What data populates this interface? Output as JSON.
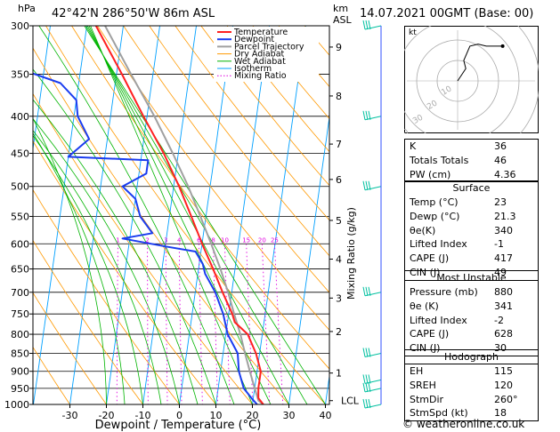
{
  "header": {
    "hpa_unit": "hPa",
    "location": "42°42'N  286°50'W  86m  ASL",
    "km_unit": "km",
    "asl_unit": "ASL",
    "datetime": "14.07.2021  00GMT  (Base: 00)"
  },
  "footer": {
    "copyright": "© weatheronline.co.uk"
  },
  "chart_data": {
    "type": "skew-t",
    "xlabel": "Dewpoint / Temperature (°C)",
    "ylabel_left": "hPa",
    "ylabel_right": "Mixing Ratio (g/kg)",
    "xlim": [
      -35,
      40
    ],
    "x_ticks": [
      -30,
      -20,
      -10,
      0,
      10,
      20,
      30,
      40
    ],
    "pressure_levels": [
      300,
      350,
      400,
      450,
      500,
      550,
      600,
      650,
      700,
      750,
      800,
      850,
      900,
      950,
      1000
    ],
    "altitude_km": [
      {
        "km": "9",
        "p": 321
      },
      {
        "km": "8",
        "p": 375
      },
      {
        "km": "7",
        "p": 437
      },
      {
        "km": "6",
        "p": 489
      },
      {
        "km": "5",
        "p": 557
      },
      {
        "km": "4",
        "p": 630
      },
      {
        "km": "3",
        "p": 713
      },
      {
        "km": "2",
        "p": 793
      },
      {
        "km": "1",
        "p": 905
      },
      {
        "km": "LCL",
        "p": 988
      }
    ],
    "mixing_ratio_labels": [
      "1",
      "2",
      "3",
      "4",
      "6",
      "8",
      "10",
      "15",
      "20",
      "25"
    ],
    "legend": [
      "Temperature",
      "Dewpoint",
      "Parcel Trajectory",
      "Dry Adiabat",
      "Wet Adiabat",
      "Isotherm",
      "Mixing Ratio"
    ],
    "colors": {
      "temperature": "#ff2020",
      "dewpoint": "#1a3cf0",
      "parcel": "#a0a0a0",
      "dry_adiabat": "#ff9900",
      "wet_adiabat": "#00b400",
      "isotherm": "#00a0ff",
      "mixing_ratio": "#e000e0",
      "wind": "#00c0a0"
    },
    "temperature": [
      {
        "p": 1000,
        "t": 23.0
      },
      {
        "p": 980,
        "t": 21.4
      },
      {
        "p": 950,
        "t": 21.0
      },
      {
        "p": 900,
        "t": 21.0
      },
      {
        "p": 850,
        "t": 19.0
      },
      {
        "p": 800,
        "t": 16.0
      },
      {
        "p": 770,
        "t": 12.0
      },
      {
        "p": 750,
        "t": 11.0
      },
      {
        "p": 700,
        "t": 7.5
      },
      {
        "p": 650,
        "t": 4.0
      },
      {
        "p": 600,
        "t": 0.0
      },
      {
        "p": 550,
        "t": -4.0
      },
      {
        "p": 500,
        "t": -8.5
      },
      {
        "p": 450,
        "t": -14.0
      },
      {
        "p": 400,
        "t": -21.0
      },
      {
        "p": 350,
        "t": -28.5
      },
      {
        "p": 300,
        "t": -37.5
      }
    ],
    "dewpoint": [
      {
        "p": 1000,
        "t": 21.3
      },
      {
        "p": 980,
        "t": 19.5
      },
      {
        "p": 950,
        "t": 17.0
      },
      {
        "p": 900,
        "t": 15.0
      },
      {
        "p": 850,
        "t": 14.0
      },
      {
        "p": 800,
        "t": 10.5
      },
      {
        "p": 750,
        "t": 8.5
      },
      {
        "p": 700,
        "t": 5.5
      },
      {
        "p": 660,
        "t": 2.0
      },
      {
        "p": 640,
        "t": 1.0
      },
      {
        "p": 615,
        "t": -1.5
      },
      {
        "p": 605,
        "t": -10.0
      },
      {
        "p": 590,
        "t": -22.0
      },
      {
        "p": 580,
        "t": -14.0
      },
      {
        "p": 550,
        "t": -18.0
      },
      {
        "p": 520,
        "t": -20.0
      },
      {
        "p": 500,
        "t": -24.0
      },
      {
        "p": 480,
        "t": -18.0
      },
      {
        "p": 460,
        "t": -18.0
      },
      {
        "p": 455,
        "t": -40.0
      },
      {
        "p": 430,
        "t": -35.0
      },
      {
        "p": 400,
        "t": -39.0
      },
      {
        "p": 380,
        "t": -40.0
      },
      {
        "p": 360,
        "t": -45.0
      },
      {
        "p": 345,
        "t": -56.0
      },
      {
        "p": 320,
        "t": -58.0
      },
      {
        "p": 310,
        "t": -60.0
      },
      {
        "p": 300,
        "t": -65.0
      }
    ],
    "parcel": [
      {
        "p": 1000,
        "t": 23.0
      },
      {
        "p": 988,
        "t": 21.5
      },
      {
        "p": 950,
        "t": 20.0
      },
      {
        "p": 900,
        "t": 18.0
      },
      {
        "p": 850,
        "t": 16.0
      },
      {
        "p": 800,
        "t": 14.0
      },
      {
        "p": 750,
        "t": 11.5
      },
      {
        "p": 700,
        "t": 9.0
      },
      {
        "p": 650,
        "t": 6.0
      },
      {
        "p": 600,
        "t": 2.5
      },
      {
        "p": 550,
        "t": -1.5
      },
      {
        "p": 500,
        "t": -6.0
      },
      {
        "p": 450,
        "t": -11.5
      },
      {
        "p": 400,
        "t": -18.0
      },
      {
        "p": 350,
        "t": -26.0
      },
      {
        "p": 300,
        "t": -35.0
      }
    ],
    "wind_barbs_p": [
      300,
      400,
      500,
      700,
      850,
      925,
      950,
      1000
    ],
    "hodograph": {
      "label": "kt",
      "ring_labels": [
        "10",
        "20",
        "30",
        "40"
      ],
      "u": [
        0,
        2,
        4,
        3,
        6,
        10,
        14,
        22
      ],
      "v": [
        0,
        3,
        6,
        10,
        17,
        18,
        17,
        17
      ]
    }
  },
  "indices": [
    {
      "label": "K",
      "value": "36"
    },
    {
      "label": "Totals Totals",
      "value": "46"
    },
    {
      "label": "PW (cm)",
      "value": "4.36"
    }
  ],
  "surface": {
    "title": "Surface",
    "rows": [
      {
        "label": "Temp (°C)",
        "value": "23"
      },
      {
        "label": "Dewp (°C)",
        "value": "21.3"
      },
      {
        "label": "θe(K)",
        "value": "340"
      },
      {
        "label": "Lifted Index",
        "value": "-1"
      },
      {
        "label": "CAPE (J)",
        "value": "417"
      },
      {
        "label": "CIN (J)",
        "value": "49"
      }
    ]
  },
  "most_unstable": {
    "title": "Most Unstable",
    "rows": [
      {
        "label": "Pressure (mb)",
        "value": "880"
      },
      {
        "label": "θe (K)",
        "value": "341"
      },
      {
        "label": "Lifted Index",
        "value": "-2"
      },
      {
        "label": "CAPE (J)",
        "value": "628"
      },
      {
        "label": "CIN (J)",
        "value": "30"
      }
    ]
  },
  "hodograph_table": {
    "title": "Hodograph",
    "rows": [
      {
        "label": "EH",
        "value": "115"
      },
      {
        "label": "SREH",
        "value": "120"
      },
      {
        "label": "StmDir",
        "value": "260°"
      },
      {
        "label": "StmSpd (kt)",
        "value": "18"
      }
    ]
  }
}
